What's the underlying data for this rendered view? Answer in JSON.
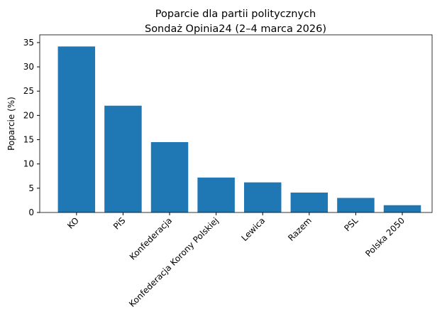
{
  "chart_data": {
    "type": "bar",
    "title": "Poparcie dla partii politycznych",
    "subtitle": "Sondaż Opinia24 (2–4 marca 2026)",
    "y_label": "Poparcie (%)",
    "categories": [
      "KO",
      "PiS",
      "Konfederacja",
      "Konfederacja Korony Polskiej",
      "Lewica",
      "Razem",
      "PSL",
      "Polska 2050"
    ],
    "values": [
      34.2,
      22,
      14.5,
      7.2,
      6.2,
      4.1,
      3,
      1.5
    ],
    "color": "#1f77b4",
    "ylim": [
      0,
      36.6
    ],
    "yticks": [
      0,
      5,
      10,
      15,
      20,
      25,
      30,
      35
    ],
    "grid": false
  }
}
